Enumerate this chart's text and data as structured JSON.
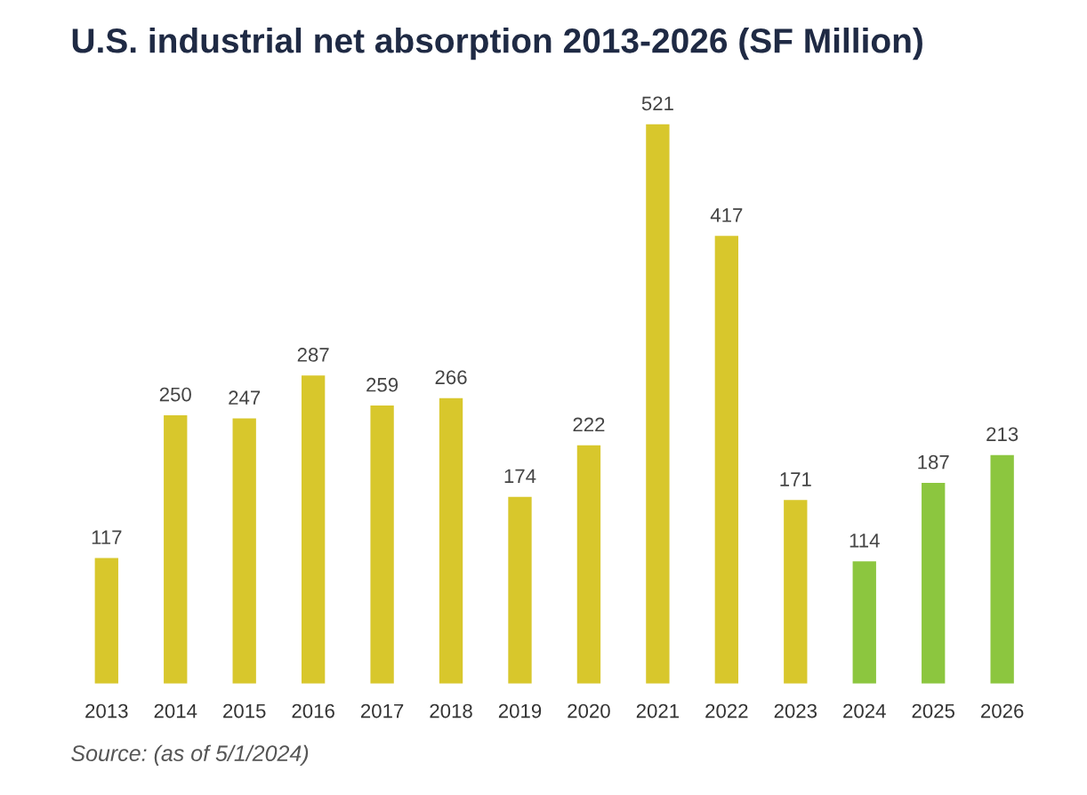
{
  "chart_data": {
    "type": "bar",
    "title": "U.S. industrial net absorption 2013-2026 (SF Million)",
    "categories": [
      "2013",
      "2014",
      "2015",
      "2016",
      "2017",
      "2018",
      "2019",
      "2020",
      "2021",
      "2022",
      "2023",
      "2024",
      "2025",
      "2026"
    ],
    "values": [
      117,
      250,
      247,
      287,
      259,
      266,
      174,
      222,
      521,
      417,
      171,
      114,
      187,
      213
    ],
    "colors": [
      "#d8c72c",
      "#d8c72c",
      "#d8c72c",
      "#d8c72c",
      "#d8c72c",
      "#d8c72c",
      "#d8c72c",
      "#d8c72c",
      "#d8c72c",
      "#d8c72c",
      "#d8c72c",
      "#8cc63f",
      "#8cc63f",
      "#8cc63f"
    ],
    "data_labels": true,
    "grid": false,
    "legend": false,
    "annotations": [
      "Source: (as of 5/1/2024)"
    ]
  }
}
